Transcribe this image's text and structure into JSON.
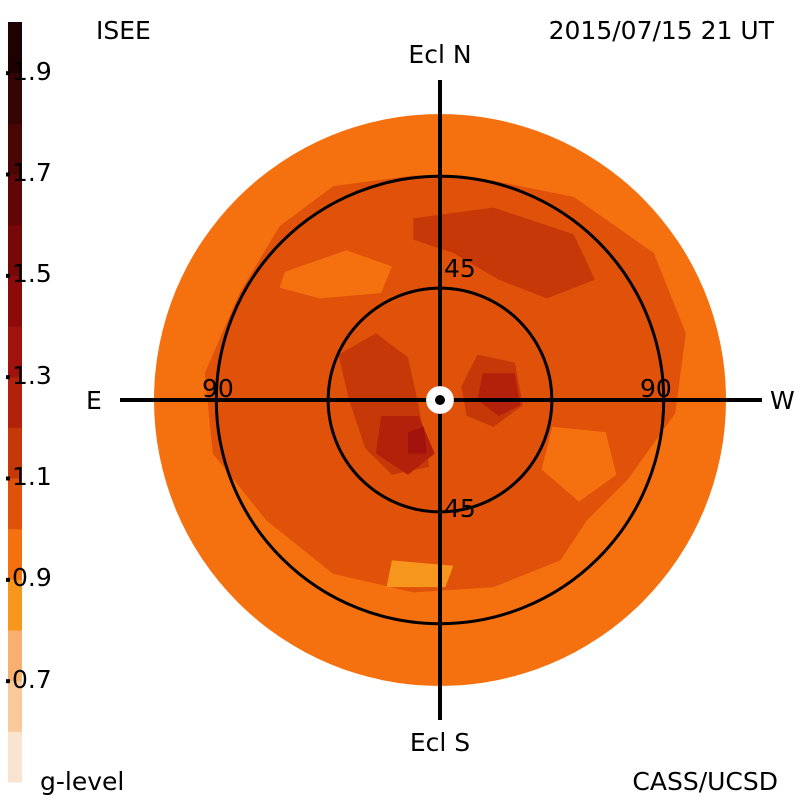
{
  "header": {
    "source": "ISEE",
    "timestamp": "2015/07/15 21 UT",
    "credit": "CASS/UCSD"
  },
  "chart_data": {
    "type": "heatmap",
    "projection": "polar sky map centered on the Sun",
    "title": "",
    "directions": {
      "north": "Ecl N",
      "south": "Ecl S",
      "east": "E",
      "west": "W"
    },
    "ring_labels": [
      {
        "text": "45",
        "elongation_deg": 45,
        "position": "north"
      },
      {
        "text": "45",
        "elongation_deg": 45,
        "position": "south"
      },
      {
        "text": "90",
        "elongation_deg": 90,
        "position": "east"
      },
      {
        "text": "90",
        "elongation_deg": 90,
        "position": "west"
      }
    ],
    "elongation_rings_deg": [
      45,
      90
    ],
    "map_extent_deg": 107,
    "occulter_deg": 5.2,
    "colorbar": {
      "label": "g-level",
      "range": [
        0.5,
        2.0
      ],
      "tick_values": [
        1.9,
        1.7,
        1.5,
        1.3,
        1.1,
        0.9,
        0.7
      ],
      "tick_labels": [
        "1.9",
        "1.7",
        "1.5",
        "1.3",
        "1.1",
        "0.9",
        "0.7"
      ],
      "bands": [
        {
          "from": 0.5,
          "to": 0.6,
          "color": "#fbe4cf"
        },
        {
          "from": 0.6,
          "to": 0.7,
          "color": "#f9c99b"
        },
        {
          "from": 0.7,
          "to": 0.8,
          "color": "#f8b071"
        },
        {
          "from": 0.8,
          "to": 0.9,
          "color": "#f7961d"
        },
        {
          "from": 0.9,
          "to": 1.0,
          "color": "#f5700f"
        },
        {
          "from": 1.0,
          "to": 1.1,
          "color": "#e0510a"
        },
        {
          "from": 1.1,
          "to": 1.2,
          "color": "#c73808"
        },
        {
          "from": 1.2,
          "to": 1.3,
          "color": "#b3210a"
        },
        {
          "from": 1.3,
          "to": 1.4,
          "color": "#a0120b"
        },
        {
          "from": 1.4,
          "to": 1.5,
          "color": "#8c0a0a"
        },
        {
          "from": 1.5,
          "to": 1.6,
          "color": "#760808"
        },
        {
          "from": 1.6,
          "to": 1.7,
          "color": "#600606"
        },
        {
          "from": 1.7,
          "to": 1.8,
          "color": "#4a0505"
        },
        {
          "from": 1.8,
          "to": 1.9,
          "color": "#350404"
        },
        {
          "from": 1.9,
          "to": 2.0,
          "color": "#1e0202"
        }
      ]
    },
    "background_level": 0.95,
    "regions": [
      {
        "level": 1.05,
        "points": [
          [
            -40,
            80
          ],
          [
            -10,
            84
          ],
          [
            20,
            82
          ],
          [
            50,
            76
          ],
          [
            80,
            55
          ],
          [
            92,
            25
          ],
          [
            88,
            -5
          ],
          [
            70,
            -30
          ],
          [
            55,
            -45
          ],
          [
            45,
            -60
          ],
          [
            20,
            -70
          ],
          [
            -10,
            -72
          ],
          [
            -40,
            -65
          ],
          [
            -65,
            -45
          ],
          [
            -85,
            -20
          ],
          [
            -88,
            10
          ],
          [
            -75,
            40
          ],
          [
            -60,
            65
          ]
        ]
      },
      {
        "level": 0.95,
        "points": [
          [
            -58,
            48
          ],
          [
            -35,
            56
          ],
          [
            -18,
            50
          ],
          [
            -22,
            40
          ],
          [
            -45,
            38
          ],
          [
            -60,
            42
          ]
        ]
      },
      {
        "level": 0.95,
        "points": [
          [
            42,
            -10
          ],
          [
            62,
            -12
          ],
          [
            66,
            -28
          ],
          [
            52,
            -38
          ],
          [
            38,
            -26
          ]
        ]
      },
      {
        "level": 0.85,
        "points": [
          [
            -18,
            -60
          ],
          [
            5,
            -62
          ],
          [
            2,
            -70
          ],
          [
            -20,
            -70
          ]
        ]
      },
      {
        "level": 1.15,
        "points": [
          [
            -10,
            68
          ],
          [
            20,
            72
          ],
          [
            50,
            62
          ],
          [
            58,
            45
          ],
          [
            40,
            38
          ],
          [
            22,
            45
          ],
          [
            5,
            55
          ],
          [
            -10,
            60
          ]
        ]
      },
      {
        "level": 1.15,
        "points": [
          [
            -38,
            17
          ],
          [
            -24,
            25
          ],
          [
            -12,
            16
          ],
          [
            -8,
            -2
          ],
          [
            -4,
            -25
          ],
          [
            -18,
            -28
          ],
          [
            -28,
            -18
          ],
          [
            -34,
            0
          ]
        ]
      },
      {
        "level": 1.15,
        "points": [
          [
            14,
            17
          ],
          [
            28,
            14
          ],
          [
            31,
            -2
          ],
          [
            20,
            -10
          ],
          [
            10,
            -6
          ],
          [
            8,
            5
          ]
        ]
      },
      {
        "level": 1.25,
        "points": [
          [
            -22,
            -6
          ],
          [
            -8,
            -6
          ],
          [
            -2,
            -20
          ],
          [
            -12,
            -28
          ],
          [
            -24,
            -20
          ]
        ]
      },
      {
        "level": 1.25,
        "points": [
          [
            16,
            10
          ],
          [
            28,
            10
          ],
          [
            30,
            -2
          ],
          [
            22,
            -6
          ],
          [
            14,
            0
          ]
        ]
      },
      {
        "level": 1.35,
        "points": [
          [
            -12,
            -12
          ],
          [
            -6,
            -10
          ],
          [
            -5,
            -20
          ],
          [
            -12,
            -20
          ]
        ]
      }
    ]
  }
}
